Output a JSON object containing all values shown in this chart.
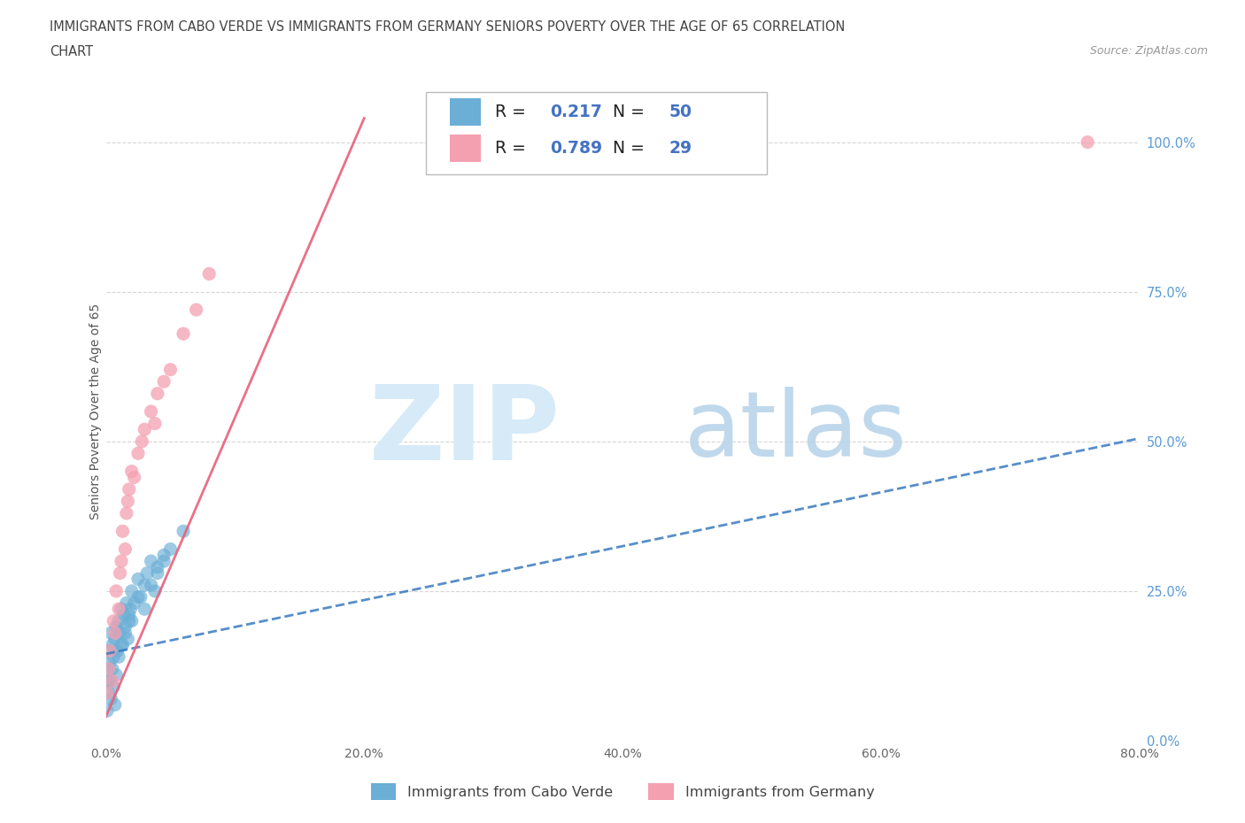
{
  "title_line1": "IMMIGRANTS FROM CABO VERDE VS IMMIGRANTS FROM GERMANY SENIORS POVERTY OVER THE AGE OF 65 CORRELATION",
  "title_line2": "CHART",
  "source_text": "Source: ZipAtlas.com",
  "ylabel": "Seniors Poverty Over the Age of 65",
  "legend_label1": "Immigrants from Cabo Verde",
  "legend_label2": "Immigrants from Germany",
  "R1": 0.217,
  "N1": 50,
  "R2": 0.789,
  "N2": 29,
  "color1": "#6baed6",
  "color2": "#f4a0b0",
  "trendline1_color": "#3a7abf",
  "trendline2_color": "#e8607a",
  "xlim": [
    0.0,
    0.8
  ],
  "ylim": [
    0.0,
    1.1
  ],
  "xticks": [
    0.0,
    0.2,
    0.4,
    0.6,
    0.8
  ],
  "yticks": [
    0.0,
    0.25,
    0.5,
    0.75,
    1.0
  ],
  "background_color": "#ffffff",
  "cabo_verde_x": [
    0.001,
    0.001,
    0.002,
    0.003,
    0.004,
    0.005,
    0.006,
    0.007,
    0.008,
    0.009,
    0.01,
    0.011,
    0.012,
    0.013,
    0.014,
    0.015,
    0.016,
    0.017,
    0.018,
    0.019,
    0.02,
    0.022,
    0.025,
    0.027,
    0.03,
    0.032,
    0.035,
    0.038,
    0.04,
    0.045,
    0.001,
    0.002,
    0.003,
    0.004,
    0.005,
    0.006,
    0.007,
    0.008,
    0.01,
    0.012,
    0.015,
    0.018,
    0.02,
    0.025,
    0.03,
    0.035,
    0.04,
    0.045,
    0.05,
    0.06
  ],
  "cabo_verde_y": [
    0.1,
    0.12,
    0.15,
    0.13,
    0.18,
    0.16,
    0.14,
    0.17,
    0.19,
    0.15,
    0.2,
    0.18,
    0.22,
    0.16,
    0.21,
    0.19,
    0.23,
    0.17,
    0.2,
    0.22,
    0.25,
    0.23,
    0.27,
    0.24,
    0.26,
    0.28,
    0.3,
    0.25,
    0.29,
    0.31,
    0.05,
    0.08,
    0.1,
    0.07,
    0.12,
    0.09,
    0.06,
    0.11,
    0.14,
    0.16,
    0.18,
    0.21,
    0.2,
    0.24,
    0.22,
    0.26,
    0.28,
    0.3,
    0.32,
    0.35
  ],
  "germany_x": [
    0.001,
    0.002,
    0.003,
    0.005,
    0.006,
    0.007,
    0.008,
    0.01,
    0.011,
    0.012,
    0.013,
    0.015,
    0.016,
    0.017,
    0.018,
    0.02,
    0.022,
    0.025,
    0.028,
    0.03,
    0.035,
    0.038,
    0.04,
    0.045,
    0.05,
    0.06,
    0.07,
    0.08,
    0.76
  ],
  "germany_y": [
    0.08,
    0.12,
    0.15,
    0.1,
    0.2,
    0.18,
    0.25,
    0.22,
    0.28,
    0.3,
    0.35,
    0.32,
    0.38,
    0.4,
    0.42,
    0.45,
    0.44,
    0.48,
    0.5,
    0.52,
    0.55,
    0.53,
    0.58,
    0.6,
    0.62,
    0.68,
    0.72,
    0.78,
    1.0
  ],
  "trendline1_x": [
    0.0,
    0.8
  ],
  "trendline1_y": [
    0.145,
    0.505
  ],
  "trendline2_x": [
    0.0,
    0.2
  ],
  "trendline2_y": [
    0.04,
    1.04
  ],
  "watermark_zip_color": "#cce4f5",
  "watermark_atlas_color": "#b8d4ea"
}
